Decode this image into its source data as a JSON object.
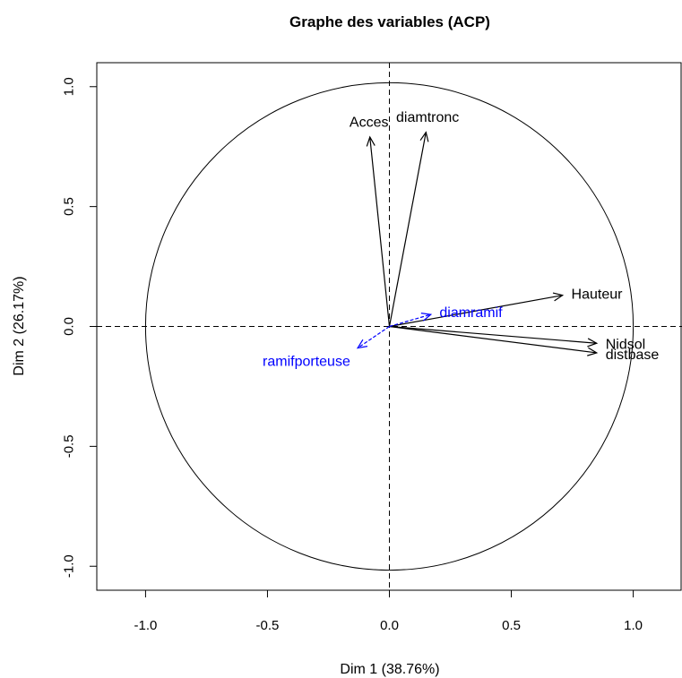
{
  "chart_data": {
    "type": "scatter",
    "title": "Graphe des variables (ACP)",
    "xlabel": "Dim 1 (38.76%)",
    "ylabel": "Dim 2 (26.17%)",
    "xlim": [
      -1.2,
      1.2
    ],
    "ylim": [
      -1.1,
      1.1
    ],
    "x_ticks": [
      -1.0,
      -0.5,
      0.0,
      0.5,
      1.0
    ],
    "y_ticks": [
      -1.0,
      -0.5,
      0.0,
      0.5,
      1.0
    ],
    "x_tick_labels": [
      "-1.0",
      "-0.5",
      "0.0",
      "0.5",
      "1.0"
    ],
    "y_tick_labels": [
      "-1.0",
      "-0.5",
      "0.0",
      "0.5",
      "1.0"
    ],
    "correlation_circle": true,
    "reference_lines": [
      0,
      0
    ],
    "grid": false,
    "active_color": "#000000",
    "supplementary_color": "#0000ff",
    "variables": [
      {
        "name": "diamtronc",
        "x": 0.15,
        "y": 0.81,
        "kind": "active"
      },
      {
        "name": "Acces",
        "x": -0.08,
        "y": 0.79,
        "kind": "active"
      },
      {
        "name": "Hauteur",
        "x": 0.71,
        "y": 0.13,
        "kind": "active"
      },
      {
        "name": "Nidsol",
        "x": 0.85,
        "y": -0.07,
        "kind": "active"
      },
      {
        "name": "distbase",
        "x": 0.85,
        "y": -0.11,
        "kind": "active"
      },
      {
        "name": "diamramif",
        "x": 0.17,
        "y": 0.05,
        "kind": "supplementary"
      },
      {
        "name": "ramifporteuse",
        "x": -0.13,
        "y": -0.09,
        "kind": "supplementary"
      }
    ]
  }
}
